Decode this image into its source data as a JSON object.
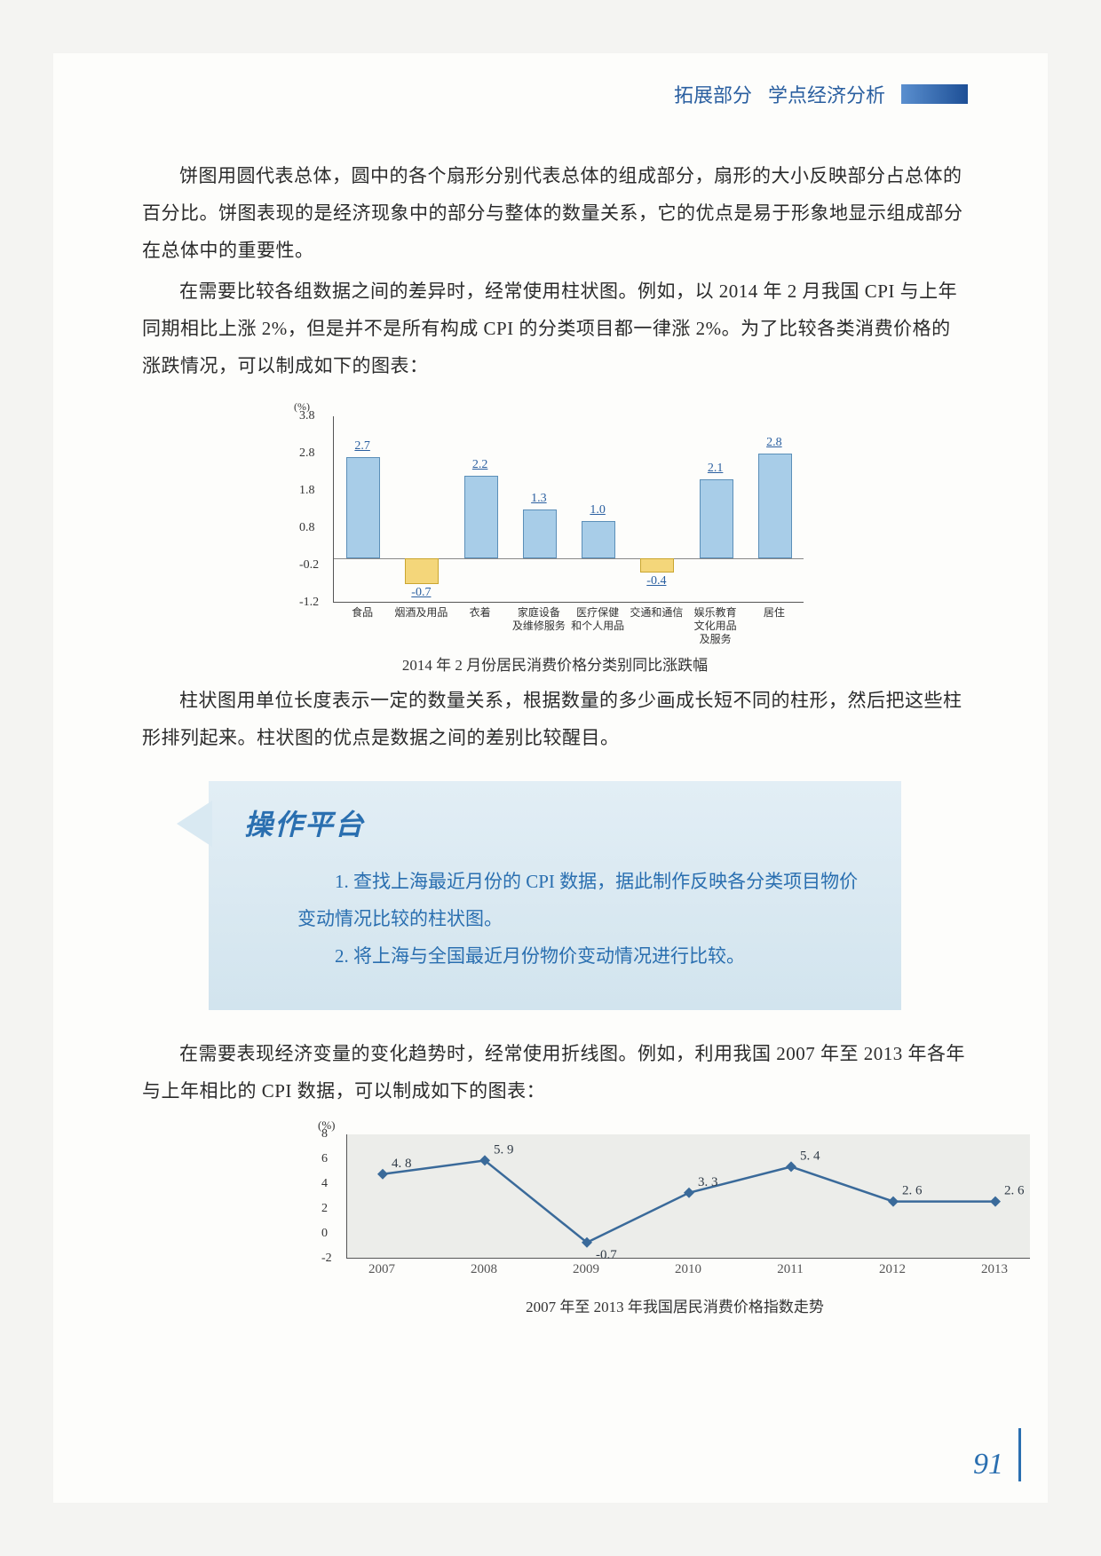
{
  "header": {
    "part": "拓展部分",
    "title": "学点经济分析"
  },
  "para1": "饼图用圆代表总体，圆中的各个扇形分别代表总体的组成部分，扇形的大小反映部分占总体的百分比。饼图表现的是经济现象中的部分与整体的数量关系，它的优点是易于形象地显示组成部分在总体中的重要性。",
  "para2": "在需要比较各组数据之间的差异时，经常使用柱状图。例如，以 2014 年 2 月我国 CPI 与上年同期相比上涨 2%，但是并不是所有构成 CPI 的分类项目都一律涨 2%。为了比较各类消费价格的涨跌情况，可以制成如下的图表：",
  "bar": {
    "unit": "(%)",
    "ymax": 3.8,
    "ymin": -1.2,
    "yticks": [
      3.8,
      2.8,
      1.8,
      0.8,
      -0.2,
      -1.2
    ],
    "categories": [
      "食品",
      "烟酒及用品",
      "衣着",
      "家庭设备\n及维修服务",
      "医疗保健\n和个人用品",
      "交通和通信",
      "娱乐教育\n文化用品\n及服务",
      "居住"
    ],
    "values": [
      2.7,
      -0.7,
      2.2,
      1.3,
      1.0,
      -0.4,
      2.1,
      2.8
    ],
    "pos_color": "#a8cde8",
    "neg_color": "#f4d67a",
    "caption": "2014 年 2 月份居民消费价格分类别同比涨跌幅"
  },
  "para3": "柱状图用单位长度表示一定的数量关系，根据数量的多少画成长短不同的柱形，然后把这些柱形排列起来。柱状图的优点是数据之间的差别比较醒目。",
  "platform": {
    "title": "操作平台",
    "item1": "1. 查找上海最近月份的 CPI 数据，据此制作反映各分类项目物价变动情况比较的柱状图。",
    "item2": "2. 将上海与全国最近月份物价变动情况进行比较。"
  },
  "para4": "在需要表现经济变量的变化趋势时，经常使用折线图。例如，利用我国 2007 年至 2013 年各年与上年相比的 CPI 数据，可以制成如下的图表：",
  "line": {
    "unit": "(%)",
    "ymax": 8,
    "ymin": -2,
    "yticks": [
      8,
      6,
      4,
      2,
      0,
      -2
    ],
    "years": [
      "2007",
      "2008",
      "2009",
      "2010",
      "2011",
      "2012",
      "2013"
    ],
    "values": [
      4.8,
      5.9,
      -0.7,
      3.3,
      5.4,
      2.6,
      2.6
    ],
    "line_color": "#3a6a9a",
    "caption": "2007 年至 2013 年我国居民消费价格指数走势"
  },
  "page_no": "91"
}
